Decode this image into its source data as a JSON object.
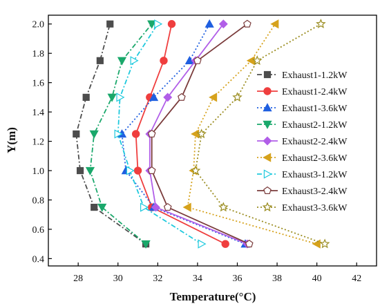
{
  "chart_data": {
    "type": "line",
    "xlabel": "Temperature(°C)",
    "ylabel": "Y(m)",
    "xlim": [
      26.5,
      43
    ],
    "ylim": [
      0.35,
      2.06
    ],
    "xticks": [
      28,
      30,
      32,
      34,
      36,
      38,
      40,
      42
    ],
    "yticks": [
      0.4,
      0.6,
      0.8,
      1.0,
      1.2,
      1.4,
      1.6,
      1.8,
      2.0
    ],
    "xtick_labels": [
      "28",
      "30",
      "32",
      "34",
      "36",
      "38",
      "40",
      "42"
    ],
    "ytick_labels": [
      "0.4",
      "0.6",
      "0.8",
      "1.0",
      "1.2",
      "1.4",
      "1.6",
      "1.8",
      "2.0"
    ],
    "legend_position": "right",
    "y": [
      0.5,
      0.75,
      1.0,
      1.25,
      1.5,
      1.75,
      2.0
    ],
    "series": [
      {
        "name": "Exhaust1-1.2kW",
        "color": "#4d4d4d",
        "marker": "square",
        "dash": "dashdot",
        "x": [
          31.4,
          28.8,
          28.1,
          27.9,
          28.4,
          29.1,
          29.6
        ]
      },
      {
        "name": "Exhaust1-2.4kW",
        "color": "#ef3e3e",
        "marker": "circle",
        "dash": "solid",
        "x": [
          35.4,
          31.7,
          31.0,
          30.9,
          31.6,
          32.3,
          32.7
        ]
      },
      {
        "name": "Exhaust1-3.6kW",
        "color": "#1f5fe0",
        "marker": "triangle-up",
        "dash": "dotted",
        "x": [
          36.4,
          31.8,
          30.4,
          30.2,
          31.8,
          33.6,
          34.6
        ]
      },
      {
        "name": "Exhaust2-1.2kW",
        "color": "#1aa86b",
        "marker": "triangle-down",
        "dash": "dashdot",
        "x": [
          31.4,
          29.2,
          28.6,
          28.8,
          29.7,
          30.2,
          31.7
        ]
      },
      {
        "name": "Exhaust2-2.4kW",
        "color": "#b15ee8",
        "marker": "diamond",
        "dash": "solid",
        "x": [
          36.5,
          31.9,
          31.6,
          31.6,
          32.5,
          33.9,
          35.3
        ]
      },
      {
        "name": "Exhaust2-3.6kW",
        "color": "#d6a21c",
        "marker": "triangle-left",
        "dash": "dotted",
        "x": [
          40.0,
          33.5,
          33.8,
          33.9,
          34.8,
          36.7,
          37.9
        ]
      },
      {
        "name": "Exhaust3-1.2kW",
        "color": "#1ec9dd",
        "marker": "triangle-right",
        "dash": "dashdot",
        "x": [
          34.2,
          31.3,
          30.6,
          30.0,
          30.1,
          30.8,
          32.0
        ]
      },
      {
        "name": "Exhaust3-2.4kW",
        "color": "#7a3b3b",
        "marker": "pentagon",
        "dash": "solid",
        "x": [
          36.6,
          32.5,
          31.7,
          31.7,
          33.2,
          34.0,
          36.5
        ]
      },
      {
        "name": "Exhaust3-3.6kW",
        "color": "#9a8c1f",
        "marker": "star",
        "dash": "dotted",
        "x": [
          40.4,
          35.3,
          33.9,
          34.2,
          36.0,
          37.0,
          40.2
        ]
      }
    ]
  }
}
